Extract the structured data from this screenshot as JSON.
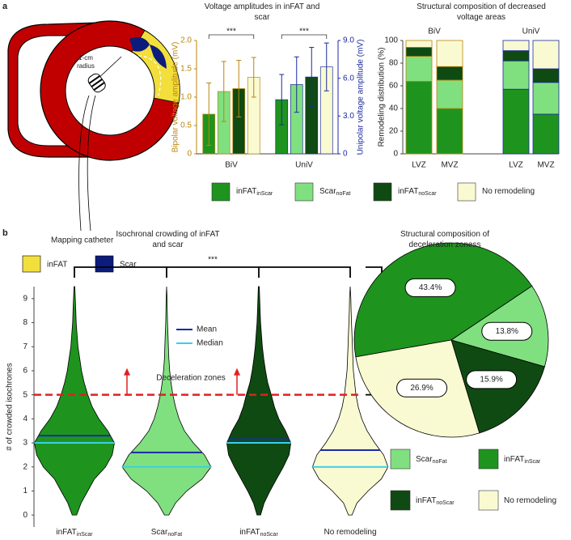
{
  "panel_labels": [
    "a",
    "b"
  ],
  "diagram": {
    "radius_label_lines": [
      "1-cm",
      "radius"
    ],
    "catheter_label": "Mapping catheter",
    "legend": [
      {
        "name": "inFAT",
        "color": "#f2df3c"
      },
      {
        "name": "Scar",
        "color": "#0c1c7c"
      }
    ]
  },
  "chart_data": [
    {
      "type": "bar",
      "title": "Voltage amplitudes in inFAT and scar",
      "categories": [
        "BiV",
        "UniV"
      ],
      "category_axes": [
        "y",
        "y2"
      ],
      "ylabel": "Bipolar voltage amplitude (mV)",
      "ylabel_color": "#b8860b",
      "y2label": "Unipolar voltage amplitude (mV)",
      "y2label_color": "#1c2a9c",
      "ylim": [
        0,
        2
      ],
      "yticks": [
        0,
        0.5,
        {
          "value": 1,
          "label": "1.0"
        },
        1.5,
        {
          "value": 2,
          "label": "2.0"
        }
      ],
      "y2lim": [
        0,
        9
      ],
      "y2ticks": [
        0,
        {
          "value": 3,
          "label": "3.0"
        },
        {
          "value": 6,
          "label": "6.0"
        },
        {
          "value": 9,
          "label": "9.0"
        }
      ],
      "significance": [
        "***",
        "***"
      ],
      "series": [
        {
          "name": "inFAT",
          "subscript": "inScar",
          "color": "#1e941e",
          "values": [
            0.7,
            4.3
          ],
          "errors": [
            0.55,
            2.0
          ]
        },
        {
          "name": "Scar",
          "subscript": "noFat",
          "color": "#80e080",
          "values": [
            1.1,
            5.5
          ],
          "errors": [
            0.53,
            2.2
          ]
        },
        {
          "name": "inFAT",
          "subscript": "noScar",
          "color": "#0f4a12",
          "values": [
            1.15,
            6.1
          ],
          "errors": [
            0.5,
            2.35
          ]
        },
        {
          "name": "No remodeling",
          "color": "#fafad2",
          "values": [
            1.35,
            6.9
          ],
          "errors": [
            0.35,
            1.9
          ]
        }
      ]
    },
    {
      "type": "stacked_bar",
      "title": "Structural composition of decreased voltage areas",
      "ylabel": "Remodeling distribution (%)",
      "ylim": [
        0,
        100
      ],
      "yticks": [
        0,
        20,
        40,
        60,
        80,
        100
      ],
      "groups": [
        {
          "label": "BiV",
          "color": "#b8860b"
        },
        {
          "label": "UniV",
          "color": "#1c2a9c"
        }
      ],
      "categories": [
        "LVZ",
        "MVZ",
        "LVZ",
        "MVZ"
      ],
      "category_groups": [
        0,
        0,
        1,
        1
      ],
      "series": [
        {
          "color": "#1e941e",
          "values": [
            64,
            40,
            57,
            35
          ]
        },
        {
          "color": "#80e080",
          "values": [
            22,
            25,
            25,
            28
          ]
        },
        {
          "color": "#0f4a12",
          "values": [
            8,
            12,
            9,
            12
          ]
        },
        {
          "color": "#fafad2",
          "values": [
            6,
            23,
            9,
            25
          ]
        }
      ]
    },
    {
      "type": "violin",
      "title": "Isochronal crowding of inFAT and scar",
      "ylabel": "# of crowded isochrones",
      "ylim": [
        -0.5,
        9.5
      ],
      "yticks": [
        0,
        1,
        2,
        3,
        4,
        5,
        6,
        7,
        8,
        9
      ],
      "significance": "***",
      "mean_label": "Mean",
      "mean_color": "#1a2aa8",
      "median_label": "Median",
      "median_color": "#3ad0e6",
      "threshold": 5,
      "threshold_label": "Deceleration zones",
      "threshold_color": "#e02020",
      "density_y": [
        0,
        0.5,
        1,
        1.5,
        2,
        2.5,
        3,
        3.5,
        4,
        4.5,
        5,
        5.5,
        6,
        6.5,
        7,
        7.5,
        8,
        8.5,
        9,
        9.5
      ],
      "series": [
        {
          "name": "inFAT",
          "subscript": "inScar",
          "color": "#1e941e",
          "mean": 3.3,
          "median": 3,
          "density": [
            0.05,
            0.15,
            0.3,
            0.45,
            0.7,
            0.85,
            0.9,
            0.75,
            0.55,
            0.4,
            0.3,
            0.22,
            0.16,
            0.12,
            0.08,
            0.06,
            0.04,
            0.03,
            0.02,
            0.01
          ]
        },
        {
          "name": "Scar",
          "subscript": "noFat",
          "color": "#80e080",
          "mean": 2.6,
          "median": 2,
          "density": [
            0.05,
            0.2,
            0.45,
            0.8,
            1.0,
            0.85,
            0.6,
            0.4,
            0.28,
            0.2,
            0.14,
            0.1,
            0.07,
            0.05,
            0.04,
            0.03,
            0.02,
            0.015,
            0.01,
            0
          ]
        },
        {
          "name": "inFAT",
          "subscript": "noScar",
          "color": "#0f4a12",
          "mean": 3.15,
          "median": 3,
          "density": [
            0.04,
            0.12,
            0.25,
            0.4,
            0.55,
            0.68,
            0.72,
            0.6,
            0.45,
            0.35,
            0.28,
            0.2,
            0.15,
            0.11,
            0.08,
            0.06,
            0.04,
            0.03,
            0.02,
            0.01
          ]
        },
        {
          "name": "No remodeling",
          "color": "#fafad2",
          "mean": 2.7,
          "median": 2,
          "density": [
            0.04,
            0.15,
            0.4,
            0.7,
            0.85,
            0.75,
            0.55,
            0.38,
            0.26,
            0.18,
            0.13,
            0.1,
            0.07,
            0.06,
            0.05,
            0.04,
            0.03,
            0.02,
            0.015,
            0
          ]
        }
      ]
    },
    {
      "type": "pie",
      "title": "Structural composition of deceleration zoness",
      "values": [
        43.4,
        13.8,
        15.9,
        26.9
      ],
      "value_labels": [
        "43.4%",
        "13.8%",
        "15.9%",
        "26.9%"
      ],
      "series": [
        {
          "name": "inFAT",
          "subscript": "inScar",
          "color": "#1e941e"
        },
        {
          "name": "Scar",
          "subscript": "noFat",
          "color": "#80e080"
        },
        {
          "name": "inFAT",
          "subscript": "noScar",
          "color": "#0f4a12"
        },
        {
          "name": "No remodeling",
          "color": "#fafad2"
        }
      ]
    }
  ]
}
